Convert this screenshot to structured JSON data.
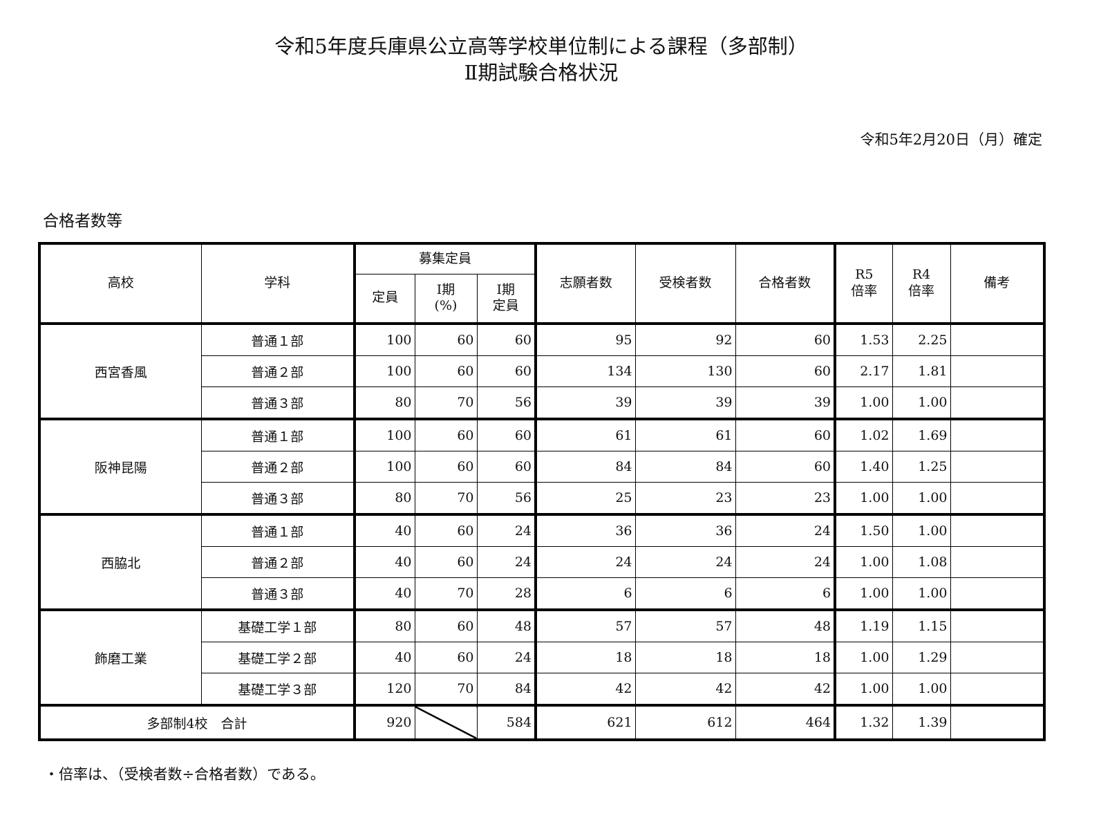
{
  "title_line1": "令和5年度兵庫県公立高等学校単位制による課程（多部制）",
  "title_line2": "Ⅱ期試験合格状況",
  "confirmed_date": "令和5年2月20日（月）確定",
  "section_title": "合格者数等",
  "headers": {
    "school": "高校",
    "course": "学科",
    "recruitment": "募集定員",
    "capacity": "定員",
    "phase1_pct_a": "Ⅰ期",
    "phase1_pct_b": "(%)",
    "phase1_cap_a": "Ⅰ期",
    "phase1_cap_b": "定員",
    "applicants": "志願者数",
    "examinees": "受検者数",
    "passed": "合格者数",
    "r5_a": "R5",
    "r5_b": "倍率",
    "r4_a": "R4",
    "r4_b": "倍率",
    "remarks": "備考"
  },
  "schools": [
    {
      "name": "西宮香風",
      "rows": [
        {
          "course": "普通１部",
          "capacity": "100",
          "pct": "60",
          "cap1": "60",
          "applicants": "95",
          "examinees": "92",
          "passed": "60",
          "r5": "1.53",
          "r4": "2.25"
        },
        {
          "course": "普通２部",
          "capacity": "100",
          "pct": "60",
          "cap1": "60",
          "applicants": "134",
          "examinees": "130",
          "passed": "60",
          "r5": "2.17",
          "r4": "1.81"
        },
        {
          "course": "普通３部",
          "capacity": "80",
          "pct": "70",
          "cap1": "56",
          "applicants": "39",
          "examinees": "39",
          "passed": "39",
          "r5": "1.00",
          "r4": "1.00"
        }
      ]
    },
    {
      "name": "阪神昆陽",
      "rows": [
        {
          "course": "普通１部",
          "capacity": "100",
          "pct": "60",
          "cap1": "60",
          "applicants": "61",
          "examinees": "61",
          "passed": "60",
          "r5": "1.02",
          "r4": "1.69"
        },
        {
          "course": "普通２部",
          "capacity": "100",
          "pct": "60",
          "cap1": "60",
          "applicants": "84",
          "examinees": "84",
          "passed": "60",
          "r5": "1.40",
          "r4": "1.25"
        },
        {
          "course": "普通３部",
          "capacity": "80",
          "pct": "70",
          "cap1": "56",
          "applicants": "25",
          "examinees": "23",
          "passed": "23",
          "r5": "1.00",
          "r4": "1.00"
        }
      ]
    },
    {
      "name": "西脇北",
      "rows": [
        {
          "course": "普通１部",
          "capacity": "40",
          "pct": "60",
          "cap1": "24",
          "applicants": "36",
          "examinees": "36",
          "passed": "24",
          "r5": "1.50",
          "r4": "1.00"
        },
        {
          "course": "普通２部",
          "capacity": "40",
          "pct": "60",
          "cap1": "24",
          "applicants": "24",
          "examinees": "24",
          "passed": "24",
          "r5": "1.00",
          "r4": "1.08"
        },
        {
          "course": "普通３部",
          "capacity": "40",
          "pct": "70",
          "cap1": "28",
          "applicants": "6",
          "examinees": "6",
          "passed": "6",
          "r5": "1.00",
          "r4": "1.00"
        }
      ]
    },
    {
      "name": "飾磨工業",
      "rows": [
        {
          "course": "基礎工学１部",
          "capacity": "80",
          "pct": "60",
          "cap1": "48",
          "applicants": "57",
          "examinees": "57",
          "passed": "48",
          "r5": "1.19",
          "r4": "1.15"
        },
        {
          "course": "基礎工学２部",
          "capacity": "40",
          "pct": "60",
          "cap1": "24",
          "applicants": "18",
          "examinees": "18",
          "passed": "18",
          "r5": "1.00",
          "r4": "1.29"
        },
        {
          "course": "基礎工学３部",
          "capacity": "120",
          "pct": "70",
          "cap1": "84",
          "applicants": "42",
          "examinees": "42",
          "passed": "42",
          "r5": "1.00",
          "r4": "1.00"
        }
      ]
    }
  ],
  "total": {
    "label": "多部制4校　合計",
    "capacity": "920",
    "cap1": "584",
    "applicants": "621",
    "examinees": "612",
    "passed": "464",
    "r5": "1.32",
    "r4": "1.39"
  },
  "note": "・倍率は、（受検者数÷合格者数）である。"
}
